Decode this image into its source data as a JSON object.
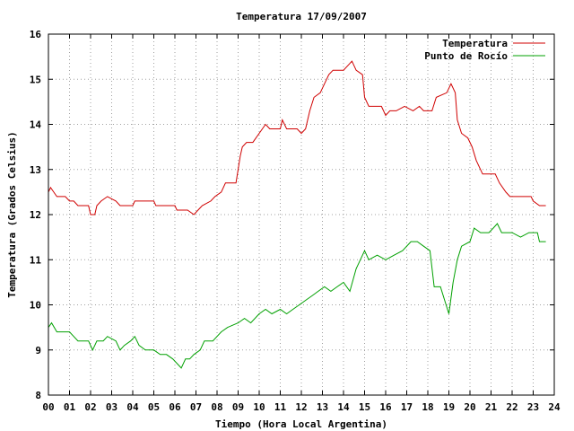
{
  "chart_data": {
    "type": "line",
    "title": "Temperatura 17/09/2007",
    "xlabel": "Tiempo (Hora Local Argentina)",
    "ylabel": "Temperatura (Grados Celsius)",
    "xlim": [
      0,
      24
    ],
    "ylim": [
      8,
      16
    ],
    "x_ticks": [
      "00",
      "01",
      "02",
      "03",
      "04",
      "05",
      "06",
      "07",
      "08",
      "09",
      "10",
      "11",
      "12",
      "13",
      "14",
      "15",
      "16",
      "17",
      "18",
      "19",
      "20",
      "21",
      "22",
      "23",
      "24"
    ],
    "y_ticks": [
      "8",
      "9",
      "10",
      "11",
      "12",
      "13",
      "14",
      "15",
      "16"
    ],
    "grid": true,
    "legend_position": "top-right",
    "series": [
      {
        "name": "Temperatura",
        "color": "#d00000",
        "points": [
          [
            0.0,
            12.5
          ],
          [
            0.1,
            12.6
          ],
          [
            0.25,
            12.5
          ],
          [
            0.4,
            12.4
          ],
          [
            0.8,
            12.4
          ],
          [
            1.0,
            12.3
          ],
          [
            1.2,
            12.3
          ],
          [
            1.4,
            12.2
          ],
          [
            1.9,
            12.2
          ],
          [
            2.0,
            12.0
          ],
          [
            2.2,
            12.0
          ],
          [
            2.3,
            12.2
          ],
          [
            2.5,
            12.3
          ],
          [
            2.8,
            12.4
          ],
          [
            3.2,
            12.3
          ],
          [
            3.4,
            12.2
          ],
          [
            4.0,
            12.2
          ],
          [
            4.1,
            12.3
          ],
          [
            5.0,
            12.3
          ],
          [
            5.1,
            12.2
          ],
          [
            6.0,
            12.2
          ],
          [
            6.1,
            12.1
          ],
          [
            6.6,
            12.1
          ],
          [
            6.9,
            12.0
          ],
          [
            7.1,
            12.1
          ],
          [
            7.3,
            12.2
          ],
          [
            7.7,
            12.3
          ],
          [
            7.9,
            12.4
          ],
          [
            8.2,
            12.5
          ],
          [
            8.4,
            12.7
          ],
          [
            8.9,
            12.7
          ],
          [
            9.0,
            13.0
          ],
          [
            9.1,
            13.3
          ],
          [
            9.2,
            13.5
          ],
          [
            9.4,
            13.6
          ],
          [
            9.7,
            13.6
          ],
          [
            10.0,
            13.8
          ],
          [
            10.3,
            14.0
          ],
          [
            10.5,
            13.9
          ],
          [
            11.0,
            13.9
          ],
          [
            11.1,
            14.1
          ],
          [
            11.3,
            13.9
          ],
          [
            11.8,
            13.9
          ],
          [
            12.0,
            13.8
          ],
          [
            12.2,
            13.9
          ],
          [
            12.4,
            14.3
          ],
          [
            12.6,
            14.6
          ],
          [
            12.9,
            14.7
          ],
          [
            13.1,
            14.9
          ],
          [
            13.3,
            15.1
          ],
          [
            13.5,
            15.2
          ],
          [
            14.0,
            15.2
          ],
          [
            14.2,
            15.3
          ],
          [
            14.4,
            15.4
          ],
          [
            14.6,
            15.2
          ],
          [
            14.9,
            15.1
          ],
          [
            15.0,
            14.6
          ],
          [
            15.2,
            14.4
          ],
          [
            15.8,
            14.4
          ],
          [
            16.0,
            14.2
          ],
          [
            16.2,
            14.3
          ],
          [
            16.5,
            14.3
          ],
          [
            16.9,
            14.4
          ],
          [
            17.3,
            14.3
          ],
          [
            17.6,
            14.4
          ],
          [
            17.8,
            14.3
          ],
          [
            18.2,
            14.3
          ],
          [
            18.4,
            14.6
          ],
          [
            18.9,
            14.7
          ],
          [
            19.1,
            14.9
          ],
          [
            19.3,
            14.7
          ],
          [
            19.4,
            14.1
          ],
          [
            19.6,
            13.8
          ],
          [
            19.9,
            13.7
          ],
          [
            20.1,
            13.5
          ],
          [
            20.3,
            13.2
          ],
          [
            20.6,
            12.9
          ],
          [
            21.2,
            12.9
          ],
          [
            21.4,
            12.7
          ],
          [
            21.7,
            12.5
          ],
          [
            21.9,
            12.4
          ],
          [
            22.5,
            12.4
          ],
          [
            22.9,
            12.4
          ],
          [
            23.0,
            12.3
          ],
          [
            23.3,
            12.2
          ],
          [
            23.6,
            12.2
          ]
        ]
      },
      {
        "name": "Punto de Rocío",
        "color": "#00a000",
        "points": [
          [
            0.0,
            9.5
          ],
          [
            0.15,
            9.6
          ],
          [
            0.4,
            9.4
          ],
          [
            1.0,
            9.4
          ],
          [
            1.2,
            9.3
          ],
          [
            1.4,
            9.2
          ],
          [
            1.9,
            9.2
          ],
          [
            2.1,
            9.0
          ],
          [
            2.3,
            9.2
          ],
          [
            2.6,
            9.2
          ],
          [
            2.8,
            9.3
          ],
          [
            3.2,
            9.2
          ],
          [
            3.4,
            9.0
          ],
          [
            3.6,
            9.1
          ],
          [
            3.9,
            9.2
          ],
          [
            4.1,
            9.3
          ],
          [
            4.3,
            9.1
          ],
          [
            4.6,
            9.0
          ],
          [
            5.0,
            9.0
          ],
          [
            5.3,
            8.9
          ],
          [
            5.6,
            8.9
          ],
          [
            5.9,
            8.8
          ],
          [
            6.3,
            8.6
          ],
          [
            6.5,
            8.8
          ],
          [
            6.7,
            8.8
          ],
          [
            6.9,
            8.9
          ],
          [
            7.2,
            9.0
          ],
          [
            7.4,
            9.2
          ],
          [
            7.8,
            9.2
          ],
          [
            8.0,
            9.3
          ],
          [
            8.2,
            9.4
          ],
          [
            8.5,
            9.5
          ],
          [
            9.0,
            9.6
          ],
          [
            9.3,
            9.7
          ],
          [
            9.6,
            9.6
          ],
          [
            10.0,
            9.8
          ],
          [
            10.3,
            9.9
          ],
          [
            10.6,
            9.8
          ],
          [
            11.0,
            9.9
          ],
          [
            11.3,
            9.8
          ],
          [
            11.6,
            9.9
          ],
          [
            11.9,
            10.0
          ],
          [
            12.2,
            10.1
          ],
          [
            12.5,
            10.2
          ],
          [
            12.8,
            10.3
          ],
          [
            13.1,
            10.4
          ],
          [
            13.4,
            10.3
          ],
          [
            13.7,
            10.4
          ],
          [
            14.0,
            10.5
          ],
          [
            14.3,
            10.3
          ],
          [
            14.6,
            10.8
          ],
          [
            14.8,
            11.0
          ],
          [
            15.0,
            11.2
          ],
          [
            15.2,
            11.0
          ],
          [
            15.6,
            11.1
          ],
          [
            16.0,
            11.0
          ],
          [
            16.4,
            11.1
          ],
          [
            16.8,
            11.2
          ],
          [
            17.2,
            11.4
          ],
          [
            17.5,
            11.4
          ],
          [
            17.8,
            11.3
          ],
          [
            18.1,
            11.2
          ],
          [
            18.3,
            10.4
          ],
          [
            18.6,
            10.4
          ],
          [
            18.8,
            10.1
          ],
          [
            19.0,
            9.8
          ],
          [
            19.2,
            10.5
          ],
          [
            19.4,
            11.0
          ],
          [
            19.6,
            11.3
          ],
          [
            20.0,
            11.4
          ],
          [
            20.2,
            11.7
          ],
          [
            20.5,
            11.6
          ],
          [
            20.9,
            11.6
          ],
          [
            21.1,
            11.7
          ],
          [
            21.3,
            11.8
          ],
          [
            21.5,
            11.6
          ],
          [
            22.0,
            11.6
          ],
          [
            22.4,
            11.5
          ],
          [
            22.8,
            11.6
          ],
          [
            23.2,
            11.6
          ],
          [
            23.3,
            11.4
          ],
          [
            23.6,
            11.4
          ]
        ]
      }
    ]
  }
}
